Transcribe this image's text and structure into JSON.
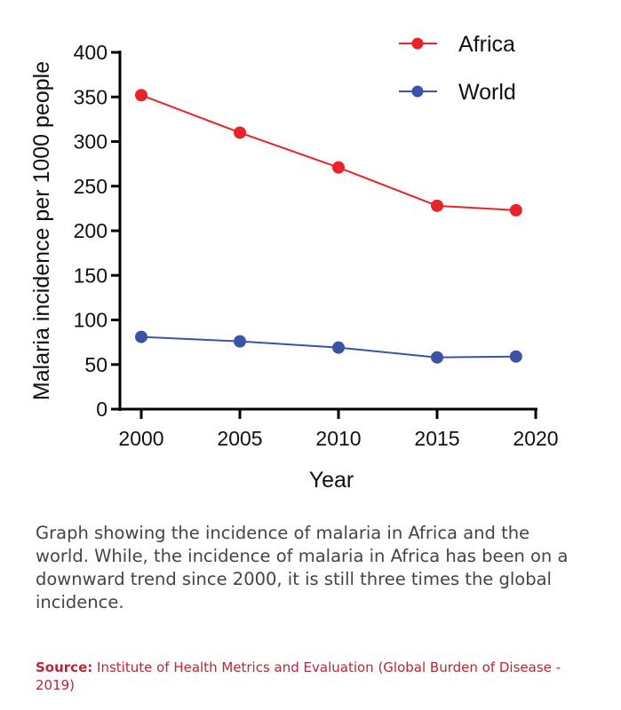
{
  "chart_data": {
    "type": "line",
    "xlabel": "Year",
    "ylabel": "Malaria incidence per 1000 people",
    "xlim": [
      2000,
      2020
    ],
    "ylim": [
      0,
      400
    ],
    "xticks": [
      "2000",
      "2005",
      "2010",
      "2015",
      "2020"
    ],
    "yticks": [
      "0",
      "50",
      "100",
      "150",
      "200",
      "250",
      "300",
      "350",
      "400"
    ],
    "x": [
      2000,
      2005,
      2010,
      2015,
      2019
    ],
    "series": [
      {
        "name": "Africa",
        "color": "#e8232a",
        "values": [
          352,
          310,
          271,
          228,
          223
        ]
      },
      {
        "name": "World",
        "color": "#3a53a4",
        "values": [
          81,
          76,
          69,
          58,
          59
        ]
      }
    ],
    "legend": "top-right",
    "grid": false
  },
  "caption": "Graph showing the incidence of malaria in Africa and the world. While, the incidence of malaria in Africa has been on a downward trend since 2000, it is still three times the global incidence.",
  "source": {
    "label": "Source:",
    "text": "Institute of Health Metrics and Evaluation (Global Burden of Disease - 2019)"
  }
}
